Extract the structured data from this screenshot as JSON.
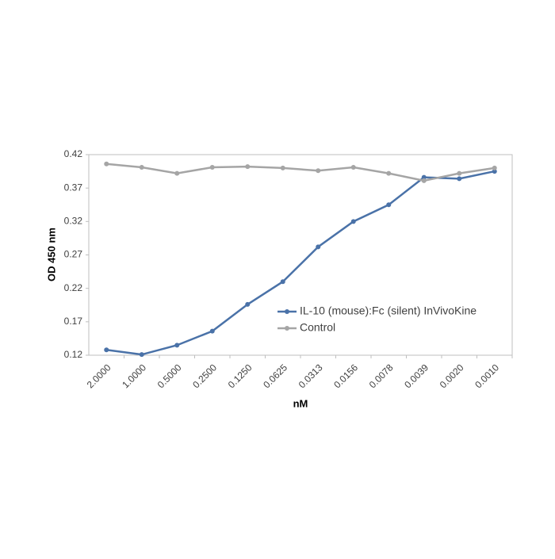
{
  "chart_data": {
    "type": "line",
    "x_label": "nM",
    "y_label": "OD 450 nm",
    "categories": [
      "2.0000",
      "1.0000",
      "0.5000",
      "0.2500",
      "0.1250",
      "0.0625",
      "0.0313",
      "0.0156",
      "0.0078",
      "0.0039",
      "0.0020",
      "0.0010"
    ],
    "series": [
      {
        "name": "IL-10 (mouse):Fc (silent) InVivoKine",
        "color": "#4a72a8",
        "values": [
          0.128,
          0.121,
          0.135,
          0.156,
          0.196,
          0.23,
          0.282,
          0.32,
          0.345,
          0.386,
          0.384,
          0.395
        ]
      },
      {
        "name": "Control",
        "color": "#a5a5a5",
        "values": [
          0.406,
          0.401,
          0.392,
          0.401,
          0.402,
          0.4,
          0.396,
          0.401,
          0.392,
          0.381,
          0.392,
          0.4
        ]
      }
    ],
    "ylim": [
      0.12,
      0.42
    ],
    "yticks": [
      0.12,
      0.17,
      0.22,
      0.27,
      0.32,
      0.37,
      0.42
    ],
    "grid": false,
    "legend": "right"
  }
}
